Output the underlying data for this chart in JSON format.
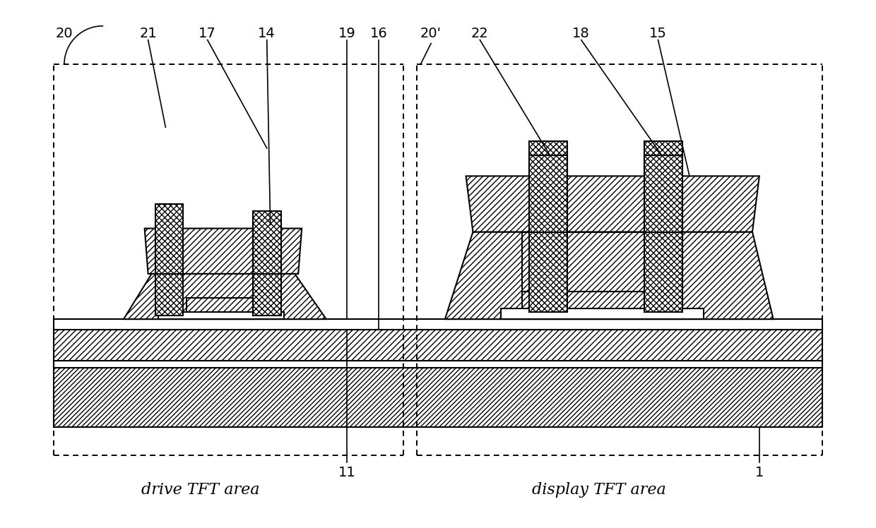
{
  "bg_color": "#ffffff",
  "lw": 1.5,
  "label_fs": 14,
  "area_fs": 16,
  "fig_w": 12.4,
  "fig_h": 7.48,
  "dpi": 100
}
